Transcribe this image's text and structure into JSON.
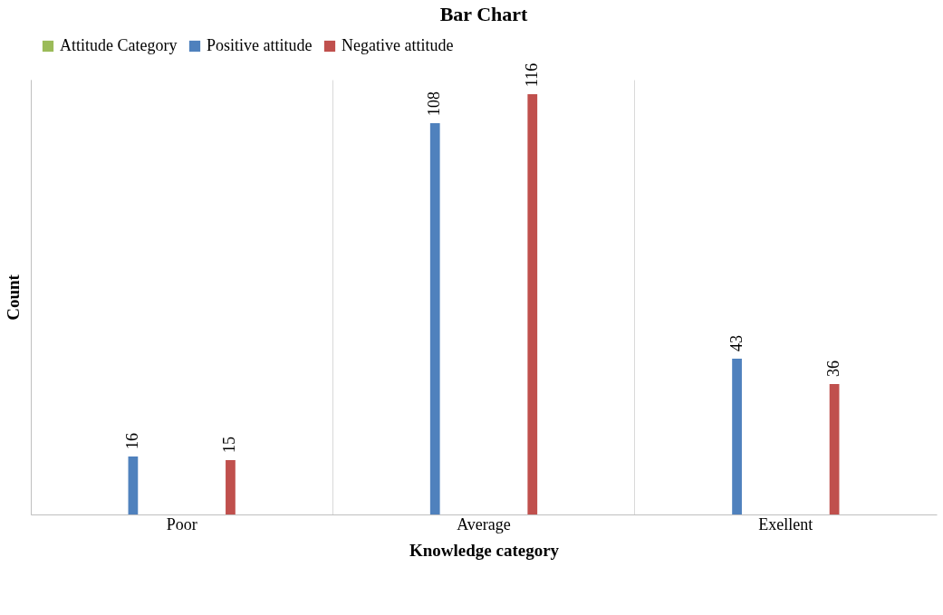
{
  "chart_data": {
    "type": "bar",
    "title": "Bar Chart",
    "xlabel": "Knowledge category",
    "ylabel": "Count",
    "categories": [
      "Poor",
      "Average",
      "Exellent"
    ],
    "series": [
      {
        "name": "Attitude Category",
        "color": "#9bbb59",
        "values": [
          null,
          null,
          null
        ]
      },
      {
        "name": "Positive attitude",
        "color": "#4f81bd",
        "values": [
          16,
          108,
          43
        ]
      },
      {
        "name": "Negative attitude",
        "color": "#c0504d",
        "values": [
          15,
          116,
          36
        ]
      }
    ],
    "data_labels": true,
    "legend": "top",
    "grid": "x"
  }
}
